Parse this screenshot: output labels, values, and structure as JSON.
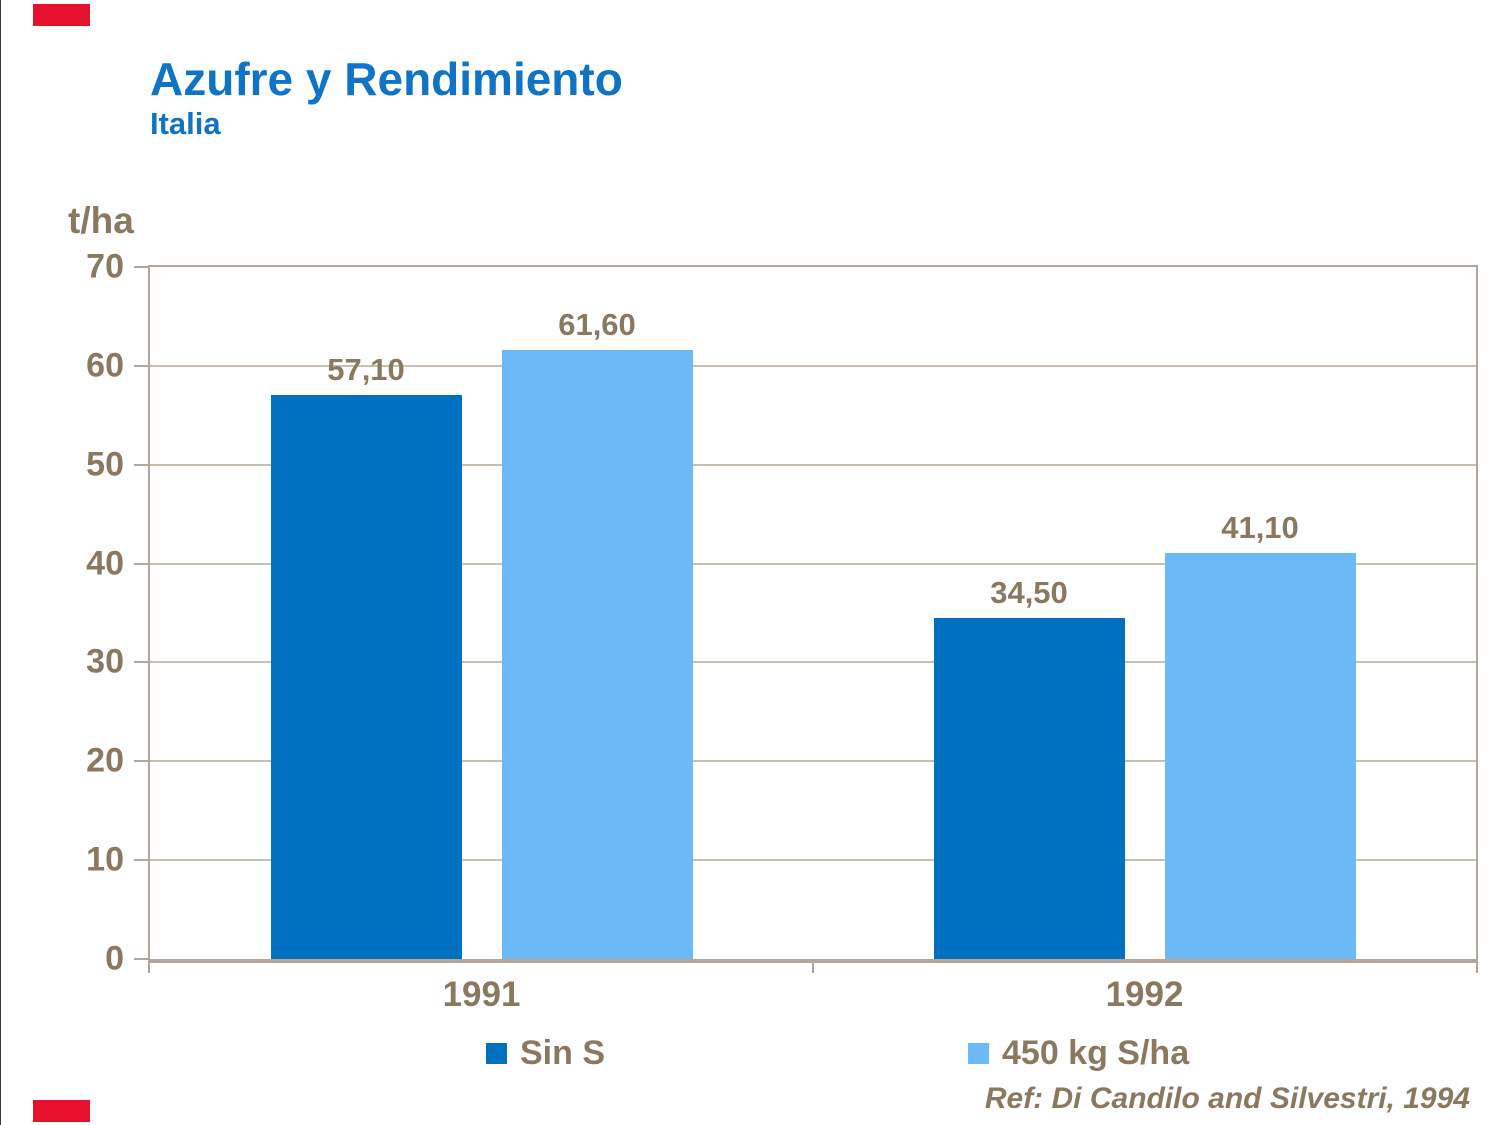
{
  "header": {
    "title": "Azufre y Rendimiento",
    "subtitle": "Italia",
    "title_color": "#0f74c6"
  },
  "decorations": {
    "red_mark_color": "#e8112d"
  },
  "chart_data": {
    "type": "bar",
    "title": "Azufre y Rendimiento",
    "subtitle": "Italia",
    "ylabel": "t/ha",
    "xlabel": "",
    "categories": [
      "1991",
      "1992"
    ],
    "series": [
      {
        "name": "Sin S",
        "color": "#0070c0",
        "values": [
          57.1,
          34.5
        ],
        "labels": [
          "57,10",
          "34,50"
        ]
      },
      {
        "name": "450 kg S/ha",
        "color": "#6cb9f7",
        "values": [
          61.6,
          41.1
        ],
        "labels": [
          "61,60",
          "41,10"
        ]
      }
    ],
    "ylim": [
      0,
      70
    ],
    "yticks": [
      0,
      10,
      20,
      30,
      40,
      50,
      60,
      70
    ],
    "grid": true,
    "legend_position": "bottom",
    "text_color": "#8a7960",
    "axis_color": "#b2a79a",
    "gridline_color": "#c9bfb1"
  },
  "footer": {
    "reference": "Ref: Di Candilo and Silvestri, 1994"
  }
}
